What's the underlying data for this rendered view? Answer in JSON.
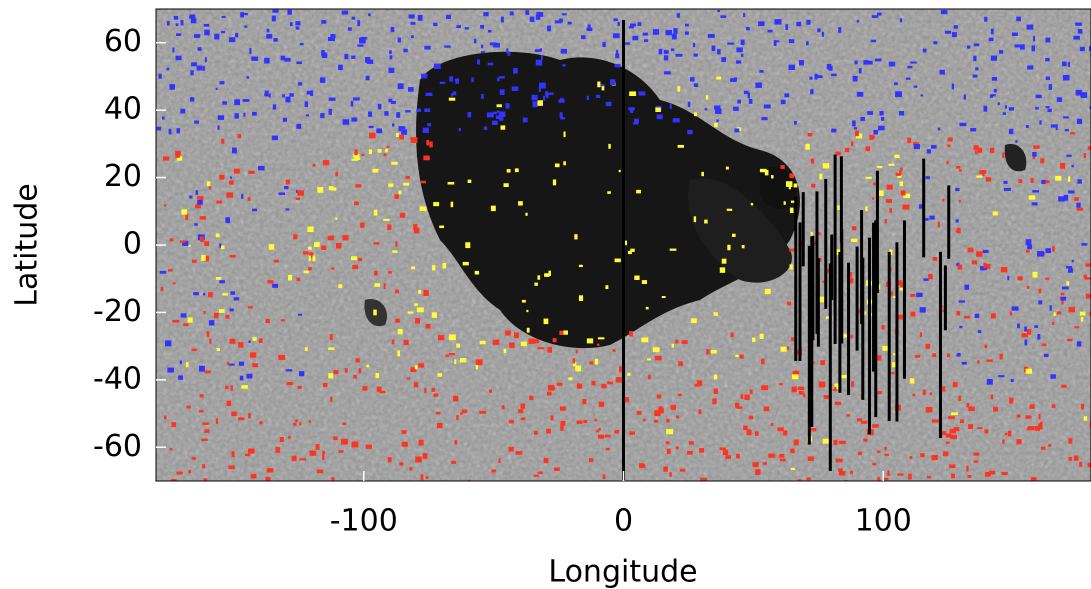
{
  "chart_data": {
    "type": "map",
    "x_label": "Longitude",
    "y_label": "Latitude",
    "xlim": [
      -180,
      180
    ],
    "ylim": [
      -70,
      70
    ],
    "xticks": [
      -100,
      0,
      100
    ],
    "yticks": [
      -60,
      -40,
      -20,
      0,
      20,
      40,
      60
    ]
  }
}
